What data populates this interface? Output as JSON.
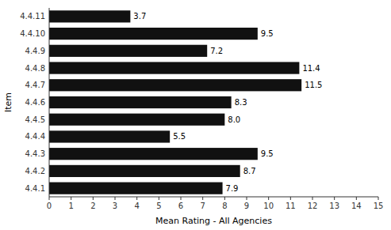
{
  "chart_data": {
    "type": "bar",
    "orientation": "horizontal",
    "categories": [
      "4.4.1",
      "4.4.2",
      "4.4.3",
      "4.4.4",
      "4.4.5",
      "4.4.6",
      "4.4.7",
      "4.4.8",
      "4.4.9",
      "4.4.10",
      "4.4.11"
    ],
    "values": [
      7.9,
      8.7,
      9.5,
      5.5,
      8.0,
      8.3,
      11.5,
      11.4,
      7.2,
      9.5,
      3.7
    ],
    "value_labels": [
      "7.9",
      "8.7",
      "9.5",
      "5.5",
      "8.0",
      "8.3",
      "11.5",
      "11.4",
      "7.2",
      "9.5",
      "3.7"
    ],
    "data_labels": true,
    "color": "#111111",
    "xlabel": "Mean Rating - All Agencies",
    "ylabel": "Item",
    "xlim": [
      0,
      15
    ],
    "xticks": [
      0,
      1,
      2,
      3,
      4,
      5,
      6,
      7,
      8,
      9,
      10,
      11,
      12,
      13,
      14,
      15
    ]
  }
}
